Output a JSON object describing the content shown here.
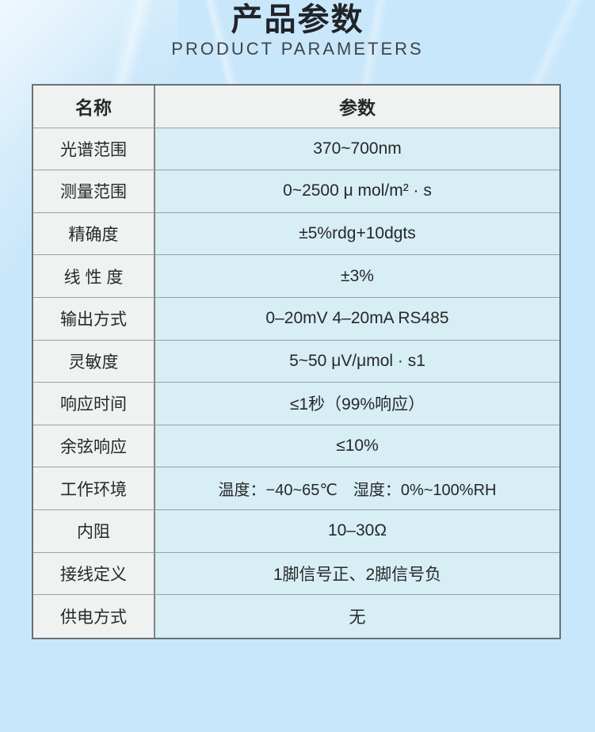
{
  "header": {
    "title": "产品参数",
    "subtitle": "PRODUCT PARAMETERS"
  },
  "table": {
    "columns": {
      "name": "名称",
      "value": "参数"
    },
    "rows": [
      {
        "name": "光谱范围",
        "value": "370~700nm"
      },
      {
        "name": "测量范围",
        "value": "0~2500 μ mol/m² · s"
      },
      {
        "name": "精确度",
        "value": "±5%rdg+10dgts"
      },
      {
        "name": "线 性 度",
        "value": "±3%"
      },
      {
        "name": "输出方式",
        "value": "0–20mV 4–20mA RS485"
      },
      {
        "name": "灵敏度",
        "value": "5~50 μV/μmol · s1"
      },
      {
        "name": "响应时间",
        "value": "≤1秒（99%响应）"
      },
      {
        "name": "余弦响应",
        "value": "≤10%"
      },
      {
        "name": "工作环境",
        "value": "温度：−40~65℃　湿度：0%~100%RH"
      },
      {
        "name": "内阻",
        "value": "10–30Ω"
      },
      {
        "name": "接线定义",
        "value": "1脚信号正、2脚信号负"
      },
      {
        "name": "供电方式",
        "value": "无"
      }
    ]
  },
  "colors": {
    "page_background": "#c9e7fa",
    "table_name_cell": "#f0f1f1",
    "table_value_cell": "#d7eef4",
    "table_outer_border": "#6a7174",
    "title_text": "#20242a",
    "subtitle_text": "#3d434b"
  }
}
